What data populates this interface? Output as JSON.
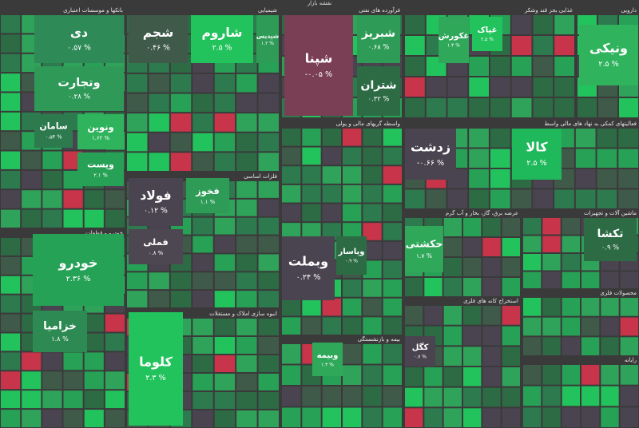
{
  "chart_data": {
    "type": "treemap",
    "title": "نقشه بازار",
    "sectors": [
      {
        "name": "بانکها و موسسات اعتباری",
        "tiles": [
          {
            "name": "دی",
            "change": "% ۰.۵۷",
            "color": "#2e8b57"
          },
          {
            "name": "وتجارت",
            "change": "% ۰.۲۸",
            "color": "#2f9a58"
          },
          {
            "name": "سامان",
            "change": "% ۰.۵۴",
            "color": "#2d7a4e"
          },
          {
            "name": "ونوین",
            "change": "% ۱.۶۲",
            "color": "#2fb35d"
          },
          {
            "name": "وپست",
            "change": "% ۲.۱",
            "color": "#27a155"
          }
        ]
      },
      {
        "name": "شیمیایی",
        "tiles": [
          {
            "name": "شجم",
            "change": "% ۰.۴۶",
            "color": "#3f5a49"
          },
          {
            "name": "شاروم",
            "change": "% ۲.۵",
            "color": "#22c35c"
          },
          {
            "name": "شپدیس",
            "change": "% ۱.۲",
            "color": "#2e9c57"
          }
        ]
      },
      {
        "name": "فرآورده های نفتی",
        "tiles": [
          {
            "name": "شپنا",
            "change": "% ۰.۰۵-",
            "color": "#7a3f55"
          },
          {
            "name": "شبریز",
            "change": "% ۰.۶۸",
            "color": "#2e9c57"
          },
          {
            "name": "شتران",
            "change": "% ۰.۳۲",
            "color": "#2d6b45"
          }
        ]
      },
      {
        "name": "غذایی بجز قند وشکر",
        "tiles": [
          {
            "name": "غکورش",
            "change": "% ۱.۴",
            "color": "#2fa85a"
          },
          {
            "name": "غپاک",
            "change": "% ۲.۵",
            "color": "#22c35c"
          }
        ]
      },
      {
        "name": "دارویی",
        "tiles": [
          {
            "name": "ونیکی",
            "change": "% ۲.۵",
            "color": "#2fb35d"
          }
        ]
      },
      {
        "name": "خودرو و قطعات",
        "tiles": [
          {
            "name": "خودرو",
            "change": "% ۲.۳۶",
            "color": "#26a257"
          },
          {
            "name": "خزامیا",
            "change": "% ۱.۸",
            "color": "#2d8a52"
          }
        ]
      },
      {
        "name": "فلزات اساسی",
        "tiles": [
          {
            "name": "فولاد",
            "change": "% ۰.۱۲",
            "color": "#4a4450"
          },
          {
            "name": "فملی",
            "change": "% ۰.۸",
            "color": "#4d4752"
          },
          {
            "name": "فخوز",
            "change": "% ۱.۱",
            "color": "#2e9c57"
          }
        ]
      },
      {
        "name": "فعالیتهای کمکی به نهاد های مالی واسط",
        "tiles": [
          {
            "name": "زدشت",
            "change": "% ۰.۶۶-",
            "color": "#4a4450"
          },
          {
            "name": "کالا",
            "change": "% ۲.۵",
            "color": "#1fb85a"
          }
        ]
      },
      {
        "name": "واسطه گریهای مالی و پولی",
        "tiles": [
          {
            "name": "وبملت",
            "change": "% ۰.۲۴",
            "color": "#4a4450"
          },
          {
            "name": "وپاسار",
            "change": "% ۰.۹",
            "color": "#2d6b45"
          }
        ]
      },
      {
        "name": "انبوه سازی املاک و مستغلات",
        "tiles": [
          {
            "name": "کلوما",
            "change": "% ۲.۳",
            "color": "#22c35c"
          }
        ]
      },
      {
        "name": "بیمه و بازنشستگی",
        "tiles": [
          {
            "name": "وبیمه",
            "change": "% ۱.۳",
            "color": "#2fa85a"
          }
        ]
      },
      {
        "name": "ماشین آلات و تجهیزات",
        "tiles": [
          {
            "name": "تکشا",
            "change": "% ۰.۹",
            "color": "#2d6b45"
          }
        ]
      },
      {
        "name": "عرضه برق، گاز، بخار و آب گرم",
        "tiles": [
          {
            "name": "حکشتی",
            "change": "% ۱.۷",
            "color": "#2fa85a"
          }
        ]
      },
      {
        "name": "استخراج کانه های فلزی",
        "tiles": [
          {
            "name": "کگل",
            "change": "% ۰.۷",
            "color": "#4a4450"
          }
        ]
      },
      {
        "name": "محصولات فلزی",
        "tiles": []
      },
      {
        "name": "رایانه",
        "tiles": []
      }
    ]
  }
}
